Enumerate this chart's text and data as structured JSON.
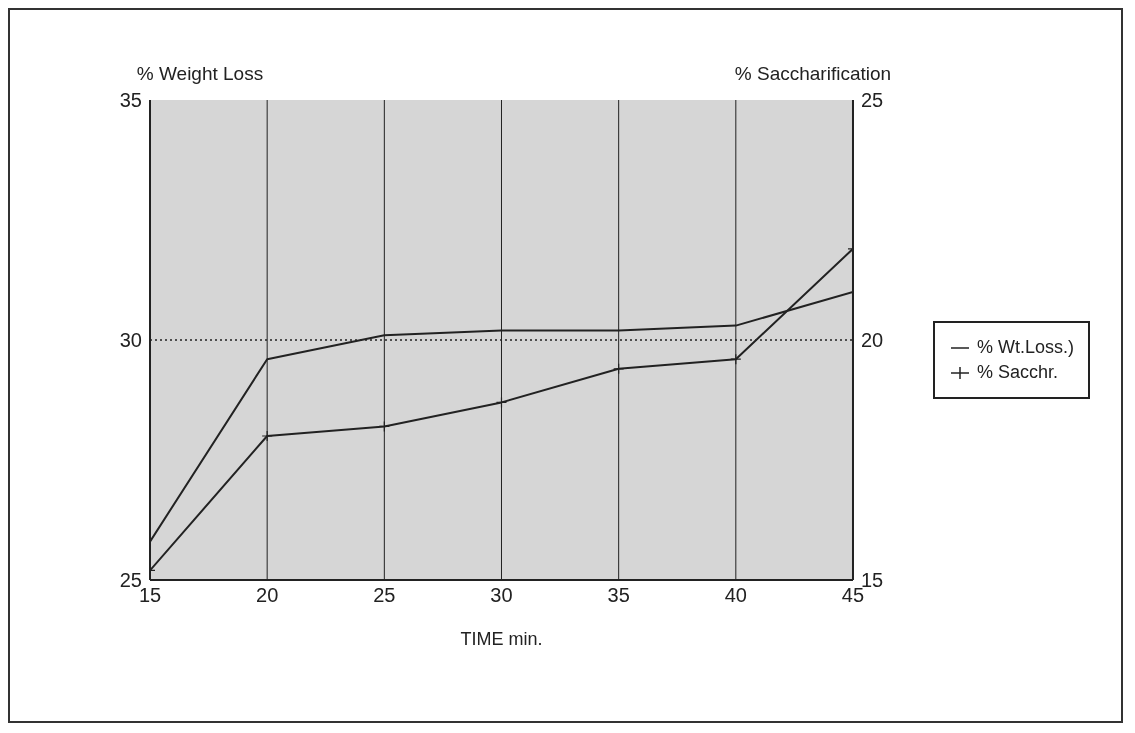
{
  "chart_data": {
    "type": "line",
    "ylabel": "% Weight Loss",
    "y2label": "% Saccharification",
    "xlabel": "TIME  min.",
    "x": [
      15,
      20,
      25,
      30,
      35,
      40,
      45
    ],
    "series": [
      {
        "name": "% Wt.Loss.)",
        "color": "#222222",
        "values": [
          25.8,
          29.6,
          30.1,
          30.2,
          30.2,
          30.3,
          31.0
        ],
        "marker": "none"
      },
      {
        "name": "% Sacchr.",
        "color": "#222222",
        "axis": "y2",
        "values": [
          15.2,
          18.0,
          18.2,
          18.7,
          19.4,
          19.6,
          21.9
        ],
        "marker": "cross"
      }
    ],
    "xlim": [
      15,
      45
    ],
    "xticks": [
      15,
      20,
      25,
      30,
      35,
      40,
      45
    ],
    "ylim": [
      25,
      35
    ],
    "yticks": [
      25,
      30,
      35
    ],
    "y2lim": [
      15,
      25
    ],
    "y2ticks": [
      15,
      20,
      25
    ],
    "ref_lines": [
      {
        "axis": "y",
        "value": 30,
        "line_style": "dotted"
      }
    ],
    "grid": "x",
    "legend": "right",
    "line_style": "solid"
  }
}
